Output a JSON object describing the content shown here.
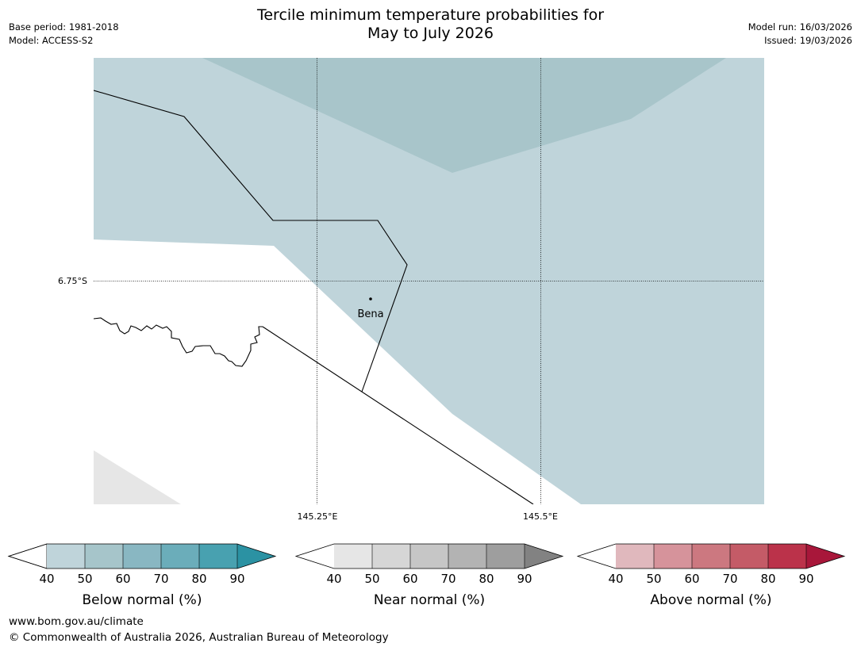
{
  "header": {
    "title_line1": "Tercile minimum temperature probabilities for",
    "title_line2": "May to July 2026",
    "base_period": "Base period: 1981-2018",
    "model": "Model: ACCESS-S2",
    "model_run": "Model run: 16/03/2026",
    "issued": "Issued: 19/03/2026"
  },
  "map": {
    "lat_labels": [
      "6.75°S"
    ],
    "lon_labels": [
      "145.25°E",
      "145.5°E"
    ],
    "place": "Bena"
  },
  "colorbars": [
    {
      "title": "Below normal (%)",
      "ticks": [
        "40",
        "50",
        "60",
        "70",
        "80",
        "90"
      ],
      "colors": [
        "#ffffff",
        "#bfd4da",
        "#a6c5ca",
        "#89b7c2",
        "#6badba",
        "#48a1b0",
        "#2b92a3"
      ]
    },
    {
      "title": "Near normal (%)",
      "ticks": [
        "40",
        "50",
        "60",
        "70",
        "80",
        "90"
      ],
      "colors": [
        "#ffffff",
        "#e6e6e6",
        "#d6d6d6",
        "#c6c6c6",
        "#b3b3b3",
        "#9e9e9e",
        "#828282"
      ]
    },
    {
      "title": "Above normal (%)",
      "ticks": [
        "40",
        "50",
        "60",
        "70",
        "80",
        "90"
      ],
      "colors": [
        "#ffffff",
        "#e0b8bd",
        "#d6939b",
        "#cc7880",
        "#c45b67",
        "#bb324a",
        "#a8173a"
      ]
    }
  ],
  "footer": {
    "url": "www.bom.gov.au/climate",
    "copyright": "© Commonwealth of Australia 2026, Australian Bureau of Meteorology"
  }
}
